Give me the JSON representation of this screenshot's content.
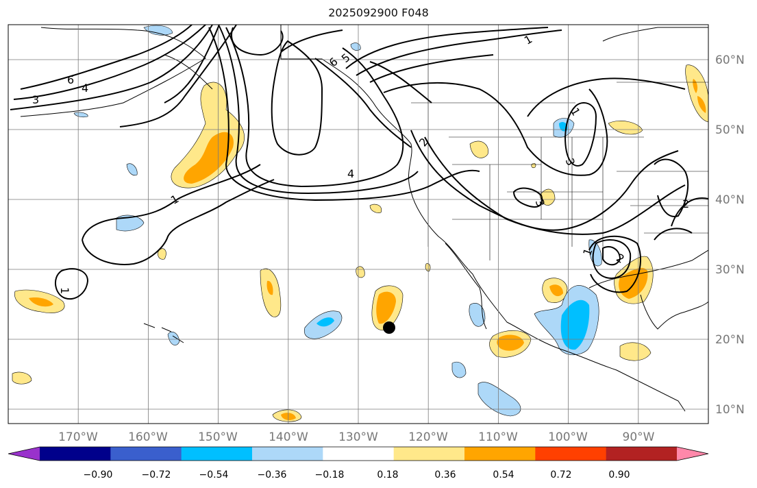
{
  "title": "2025092900 F048",
  "map": {
    "lon_range": [
      -180,
      -80
    ],
    "lat_range": [
      8,
      65
    ],
    "grid": true,
    "lon_ticks": [
      "170°W",
      "160°W",
      "150°W",
      "140°W",
      "130°W",
      "120°W",
      "110°W",
      "100°W",
      "90°W"
    ],
    "lat_ticks": [
      "60°N",
      "50°N",
      "40°N",
      "30°N",
      "20°N",
      "10°N"
    ],
    "marker": {
      "lon": -125.5,
      "lat": 21.8,
      "color": "#000000"
    }
  },
  "contour_labels": [
    "1",
    "2",
    "3",
    "4",
    "5",
    "6"
  ],
  "colorbar": {
    "orientation": "horizontal",
    "extend": "both",
    "tick_labels": [
      "−0.90",
      "−0.72",
      "−0.54",
      "−0.36",
      "−0.18",
      "0.18",
      "0.36",
      "0.54",
      "0.72",
      "0.90"
    ],
    "colors": [
      "#9932cc",
      "#00008b",
      "#3a5fcd",
      "#00bfff",
      "#add8f8",
      "#ffffff",
      "#ffe88a",
      "#ffa500",
      "#ff4000",
      "#b22222",
      "#ff88aa"
    ]
  }
}
